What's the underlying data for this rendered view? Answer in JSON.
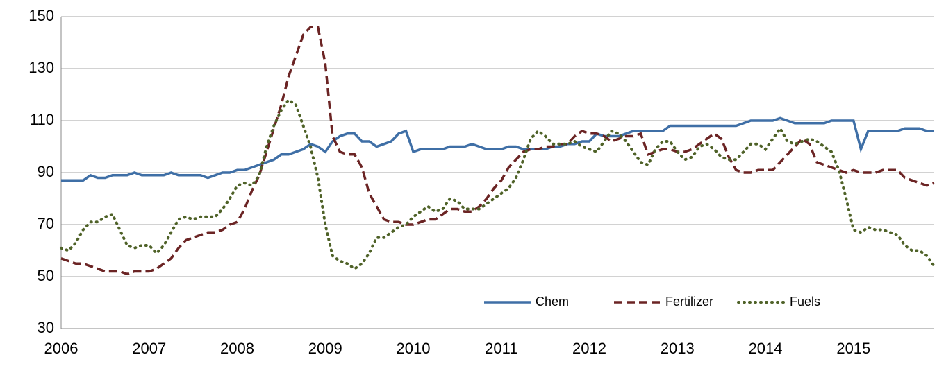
{
  "chart_data": {
    "type": "line",
    "categories": [
      "2006",
      null,
      null,
      null,
      null,
      null,
      null,
      null,
      null,
      null,
      null,
      null,
      "2007",
      null,
      null,
      null,
      null,
      null,
      null,
      null,
      null,
      null,
      null,
      null,
      "2008",
      null,
      null,
      null,
      null,
      null,
      null,
      null,
      null,
      null,
      null,
      null,
      "2009",
      null,
      null,
      null,
      null,
      null,
      null,
      null,
      null,
      null,
      null,
      null,
      "2010",
      null,
      null,
      null,
      null,
      null,
      null,
      null,
      null,
      null,
      null,
      null,
      "2011",
      null,
      null,
      null,
      null,
      null,
      null,
      null,
      null,
      null,
      null,
      null,
      "2012",
      null,
      null,
      null,
      null,
      null,
      null,
      null,
      null,
      null,
      null,
      null,
      "2013",
      null,
      null,
      null,
      null,
      null,
      null,
      null,
      null,
      null,
      null,
      null,
      "2014",
      null,
      null,
      null,
      null,
      null,
      null,
      null,
      null,
      null,
      null,
      null,
      "2015",
      null,
      null,
      null,
      null,
      null,
      null,
      null,
      null,
      null,
      null,
      null
    ],
    "series": [
      {
        "name": "Chem",
        "color": "#3f6fa6",
        "dash": "solid",
        "values": [
          87,
          87,
          87,
          87,
          89,
          88,
          88,
          89,
          89,
          89,
          90,
          89,
          89,
          89,
          89,
          90,
          89,
          89,
          89,
          89,
          88,
          89,
          90,
          90,
          91,
          91,
          92,
          93,
          94,
          95,
          97,
          97,
          98,
          99,
          101,
          100,
          98,
          102,
          104,
          105,
          105,
          102,
          102,
          100,
          101,
          102,
          105,
          106,
          98,
          99,
          99,
          99,
          99,
          100,
          100,
          100,
          101,
          100,
          99,
          99,
          99,
          100,
          100,
          99,
          99,
          99,
          99,
          100,
          100,
          101,
          101,
          102,
          102,
          105,
          104,
          104,
          104,
          105,
          106,
          106,
          106,
          106,
          106,
          108,
          108,
          108,
          108,
          108,
          108,
          108,
          108,
          108,
          108,
          109,
          110,
          110,
          110,
          110,
          111,
          110,
          109,
          109,
          109,
          109,
          109,
          110,
          110,
          110,
          110,
          99,
          106,
          106,
          106,
          106,
          106,
          107,
          107,
          107,
          106,
          106
        ]
      },
      {
        "name": "Fertilizer",
        "color": "#6b2424",
        "dash": "dashed",
        "values": [
          57,
          56,
          55,
          55,
          54,
          53,
          52,
          52,
          52,
          51,
          52,
          52,
          52,
          53,
          55,
          57,
          61,
          64,
          65,
          66,
          67,
          67,
          68,
          70,
          71,
          76,
          83,
          89,
          98,
          107,
          116,
          127,
          135,
          143,
          146,
          146,
          132,
          104,
          98,
          97,
          97,
          92,
          82,
          77,
          72,
          71,
          71,
          70,
          70,
          71,
          72,
          72,
          74,
          76,
          76,
          75,
          75,
          77,
          80,
          84,
          87,
          92,
          95,
          98,
          99,
          99,
          100,
          100,
          101,
          101,
          104,
          106,
          105,
          105,
          104,
          102,
          103,
          104,
          104,
          105,
          97,
          98,
          99,
          99,
          98,
          98,
          99,
          101,
          103,
          105,
          103,
          96,
          91,
          90,
          90,
          91,
          91,
          91,
          94,
          97,
          100,
          103,
          101,
          94,
          93,
          92,
          91,
          90,
          91,
          90,
          90,
          90,
          91,
          91,
          91,
          88,
          87,
          86,
          85,
          86
        ]
      },
      {
        "name": "Fuels",
        "color": "#4f6228",
        "dash": "dotted",
        "values": [
          61,
          60,
          63,
          68,
          71,
          71,
          73,
          74,
          68,
          62,
          61,
          62,
          62,
          59,
          62,
          67,
          72,
          73,
          72,
          73,
          73,
          73,
          76,
          80,
          85,
          86,
          85,
          89,
          100,
          108,
          114,
          118,
          116,
          108,
          100,
          88,
          70,
          58,
          56,
          55,
          53,
          55,
          59,
          65,
          65,
          67,
          69,
          70,
          73,
          75,
          77,
          75,
          76,
          80,
          79,
          76,
          76,
          76,
          78,
          80,
          82,
          84,
          88,
          95,
          103,
          106,
          104,
          101,
          101,
          101,
          102,
          100,
          99,
          98,
          102,
          106,
          105,
          102,
          98,
          94,
          93,
          99,
          102,
          102,
          98,
          95,
          96,
          100,
          101,
          99,
          96,
          95,
          95,
          98,
          101,
          101,
          99,
          103,
          107,
          102,
          101,
          102,
          103,
          102,
          100,
          98,
          91,
          80,
          68,
          67,
          69,
          68,
          68,
          67,
          66,
          62,
          60,
          60,
          58,
          54
        ]
      }
    ],
    "ylim": [
      30,
      150
    ],
    "yticks": [
      30,
      50,
      70,
      90,
      110,
      130,
      150
    ],
    "grid": true,
    "legend": "bottom-right"
  }
}
